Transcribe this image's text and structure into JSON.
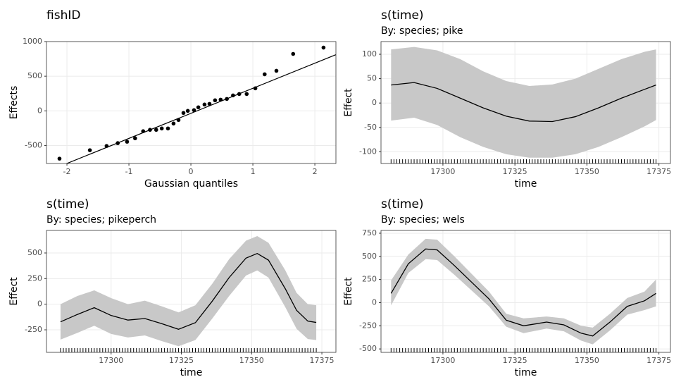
{
  "chart_data": [
    {
      "type": "scatter",
      "title": "fishID",
      "xlabel": "Gaussian quantiles",
      "ylabel": "Effects",
      "x": [
        -2.12,
        -1.63,
        -1.36,
        -1.18,
        -1.03,
        -0.9,
        -0.77,
        -0.66,
        -0.56,
        -0.47,
        -0.37,
        -0.28,
        -0.2,
        -0.12,
        -0.05,
        0.05,
        0.12,
        0.22,
        0.3,
        0.39,
        0.48,
        0.58,
        0.68,
        0.78,
        0.9,
        1.04,
        1.19,
        1.38,
        1.65,
        2.14
      ],
      "y": [
        -690,
        -568,
        -507,
        -466,
        -446,
        -396,
        -294,
        -274,
        -274,
        -254,
        -254,
        -183,
        -132,
        -30,
        0,
        10,
        51,
        91,
        101,
        152,
        162,
        172,
        223,
        243,
        243,
        325,
        528,
        578,
        822,
        913
      ],
      "line": {
        "x": [
          -2.33,
          2.34
        ],
        "y": [
          -879,
          811
        ]
      },
      "color": "#000000",
      "xlim": [
        -2.33,
        2.34
      ],
      "ylim": [
        -760,
        1000
      ],
      "xticks": [
        -2,
        -1,
        0,
        1,
        2
      ],
      "yticks": [
        -500,
        0,
        500,
        1000
      ],
      "grid": true
    },
    {
      "type": "smooth",
      "title": "s(time)",
      "subtitle": "By: species; pike",
      "xlabel": "time",
      "ylabel": "Effect",
      "x": [
        17282,
        17290,
        17298,
        17306,
        17314,
        17322,
        17330,
        17338,
        17346,
        17354,
        17362,
        17370,
        17374
      ],
      "fit": [
        37,
        42,
        30,
        10,
        -10,
        -27,
        -37,
        -38,
        -28,
        -10,
        10,
        28,
        37
      ],
      "upper": [
        110,
        115,
        108,
        90,
        65,
        45,
        35,
        38,
        50,
        70,
        90,
        105,
        110
      ],
      "lower": [
        -36,
        -30,
        -45,
        -70,
        -90,
        -105,
        -112,
        -112,
        -105,
        -90,
        -70,
        -48,
        -35
      ],
      "rug": [
        17282,
        17283,
        17284,
        17285,
        17286,
        17287,
        17288,
        17289,
        17290,
        17291,
        17292,
        17293,
        17294,
        17295,
        17296,
        17297,
        17298,
        17299,
        17300,
        17301,
        17302,
        17303,
        17304,
        17305,
        17306,
        17307,
        17308,
        17309,
        17310,
        17311,
        17312,
        17313,
        17314,
        17315,
        17316,
        17317,
        17318,
        17319,
        17320,
        17321,
        17322,
        17323,
        17324,
        17325,
        17326,
        17327,
        17328,
        17329,
        17330,
        17331,
        17332,
        17333,
        17334,
        17335,
        17336,
        17337,
        17338,
        17339,
        17340,
        17341,
        17342,
        17343,
        17344,
        17345,
        17346,
        17347,
        17348,
        17349,
        17350,
        17351,
        17352,
        17353,
        17354,
        17355,
        17356,
        17357,
        17358,
        17359,
        17360,
        17361,
        17362,
        17363,
        17364,
        17365,
        17366,
        17367,
        17368,
        17369,
        17370,
        17371,
        17372,
        17373,
        17374
      ],
      "color": "#000000",
      "band_color": "#c8c8c8",
      "xlim": [
        17278.5,
        17379
      ],
      "ylim": [
        -124,
        126
      ],
      "xticks": [
        17300,
        17325,
        17350,
        17375
      ],
      "yticks": [
        -100,
        -50,
        0,
        50,
        100
      ],
      "grid": true
    },
    {
      "type": "smooth",
      "title": "s(time)",
      "subtitle": "By: species; pikeperch",
      "xlabel": "time",
      "ylabel": "Effect",
      "x": [
        17282,
        17288,
        17294,
        17300,
        17306,
        17312,
        17318,
        17324,
        17330,
        17336,
        17342,
        17348,
        17352,
        17356,
        17362,
        17366,
        17370,
        17373
      ],
      "fit": [
        -172,
        -100,
        -34,
        -110,
        -155,
        -140,
        -190,
        -245,
        -180,
        30,
        260,
        450,
        495,
        430,
        150,
        -60,
        -165,
        -178
      ],
      "upper": [
        0,
        80,
        135,
        60,
        0,
        35,
        -20,
        -80,
        -10,
        200,
        440,
        620,
        665,
        600,
        330,
        110,
        0,
        -10
      ],
      "lower": [
        -345,
        -280,
        -210,
        -290,
        -325,
        -305,
        -360,
        -410,
        -350,
        -140,
        80,
        280,
        330,
        260,
        -30,
        -240,
        -340,
        -350
      ],
      "rug": [
        17282,
        17283,
        17284,
        17285,
        17286,
        17287,
        17288,
        17289,
        17290,
        17291,
        17292,
        17293,
        17294,
        17295,
        17296,
        17297,
        17298,
        17299,
        17300,
        17301,
        17302,
        17303,
        17304,
        17305,
        17306,
        17307,
        17308,
        17309,
        17310,
        17311,
        17312,
        17313,
        17314,
        17315,
        17316,
        17317,
        17318,
        17319,
        17320,
        17321,
        17322,
        17323,
        17324,
        17325,
        17326,
        17327,
        17328,
        17329,
        17330,
        17331,
        17332,
        17333,
        17334,
        17335,
        17336,
        17337,
        17338,
        17339,
        17340,
        17341,
        17342,
        17343,
        17344,
        17345,
        17346,
        17347,
        17348,
        17349,
        17350,
        17351,
        17352,
        17353,
        17354,
        17355,
        17356,
        17357,
        17358,
        17359,
        17360,
        17361,
        17362,
        17363,
        17364,
        17365,
        17366,
        17367,
        17368,
        17369,
        17370,
        17371,
        17372,
        17373
      ],
      "color": "#000000",
      "band_color": "#c8c8c8",
      "xlim": [
        17277,
        17380
      ],
      "ylim": [
        -470,
        720
      ],
      "xticks": [
        17300,
        17325,
        17350,
        17375
      ],
      "yticks": [
        -250,
        0,
        250,
        500
      ],
      "grid": true
    },
    {
      "type": "smooth",
      "title": "s(time)",
      "subtitle": "By: species; wels",
      "xlabel": "time",
      "ylabel": "Effect",
      "x": [
        17282,
        17288,
        17294,
        17298,
        17304,
        17310,
        17316,
        17322,
        17328,
        17336,
        17342,
        17348,
        17352,
        17358,
        17364,
        17370,
        17374
      ],
      "fit": [
        100,
        420,
        580,
        570,
        400,
        220,
        40,
        -190,
        -250,
        -210,
        -240,
        -330,
        -360,
        -210,
        -40,
        20,
        100
      ],
      "upper": [
        240,
        520,
        690,
        680,
        500,
        310,
        120,
        -120,
        -170,
        -150,
        -170,
        -250,
        -270,
        -120,
        50,
        120,
        250
      ],
      "lower": [
        -30,
        320,
        470,
        460,
        300,
        130,
        -40,
        -260,
        -330,
        -280,
        -310,
        -410,
        -450,
        -300,
        -130,
        -80,
        -40
      ],
      "rug": [
        17282,
        17283,
        17284,
        17285,
        17286,
        17287,
        17288,
        17289,
        17290,
        17291,
        17292,
        17293,
        17294,
        17295,
        17296,
        17297,
        17298,
        17299,
        17300,
        17301,
        17302,
        17303,
        17304,
        17305,
        17306,
        17307,
        17308,
        17309,
        17310,
        17311,
        17312,
        17313,
        17314,
        17315,
        17316,
        17317,
        17318,
        17319,
        17320,
        17321,
        17322,
        17325,
        17326,
        17327,
        17328,
        17329,
        17330,
        17331,
        17332,
        17333,
        17334,
        17335,
        17336,
        17337,
        17338,
        17339,
        17340,
        17341,
        17342,
        17343,
        17344,
        17345,
        17346,
        17347,
        17348,
        17349,
        17350,
        17351,
        17352,
        17353,
        17354,
        17355,
        17356,
        17357,
        17358,
        17359,
        17360,
        17361,
        17362,
        17363,
        17364,
        17365,
        17366,
        17367,
        17368,
        17369,
        17370,
        17371,
        17372,
        17373,
        17374
      ],
      "color": "#000000",
      "band_color": "#c8c8c8",
      "xlim": [
        17278.5,
        17379
      ],
      "ylim": [
        -537,
        780
      ],
      "xticks": [
        17300,
        17325,
        17350,
        17375
      ],
      "yticks": [
        -500,
        -250,
        0,
        250,
        500,
        750
      ],
      "grid": true
    }
  ]
}
